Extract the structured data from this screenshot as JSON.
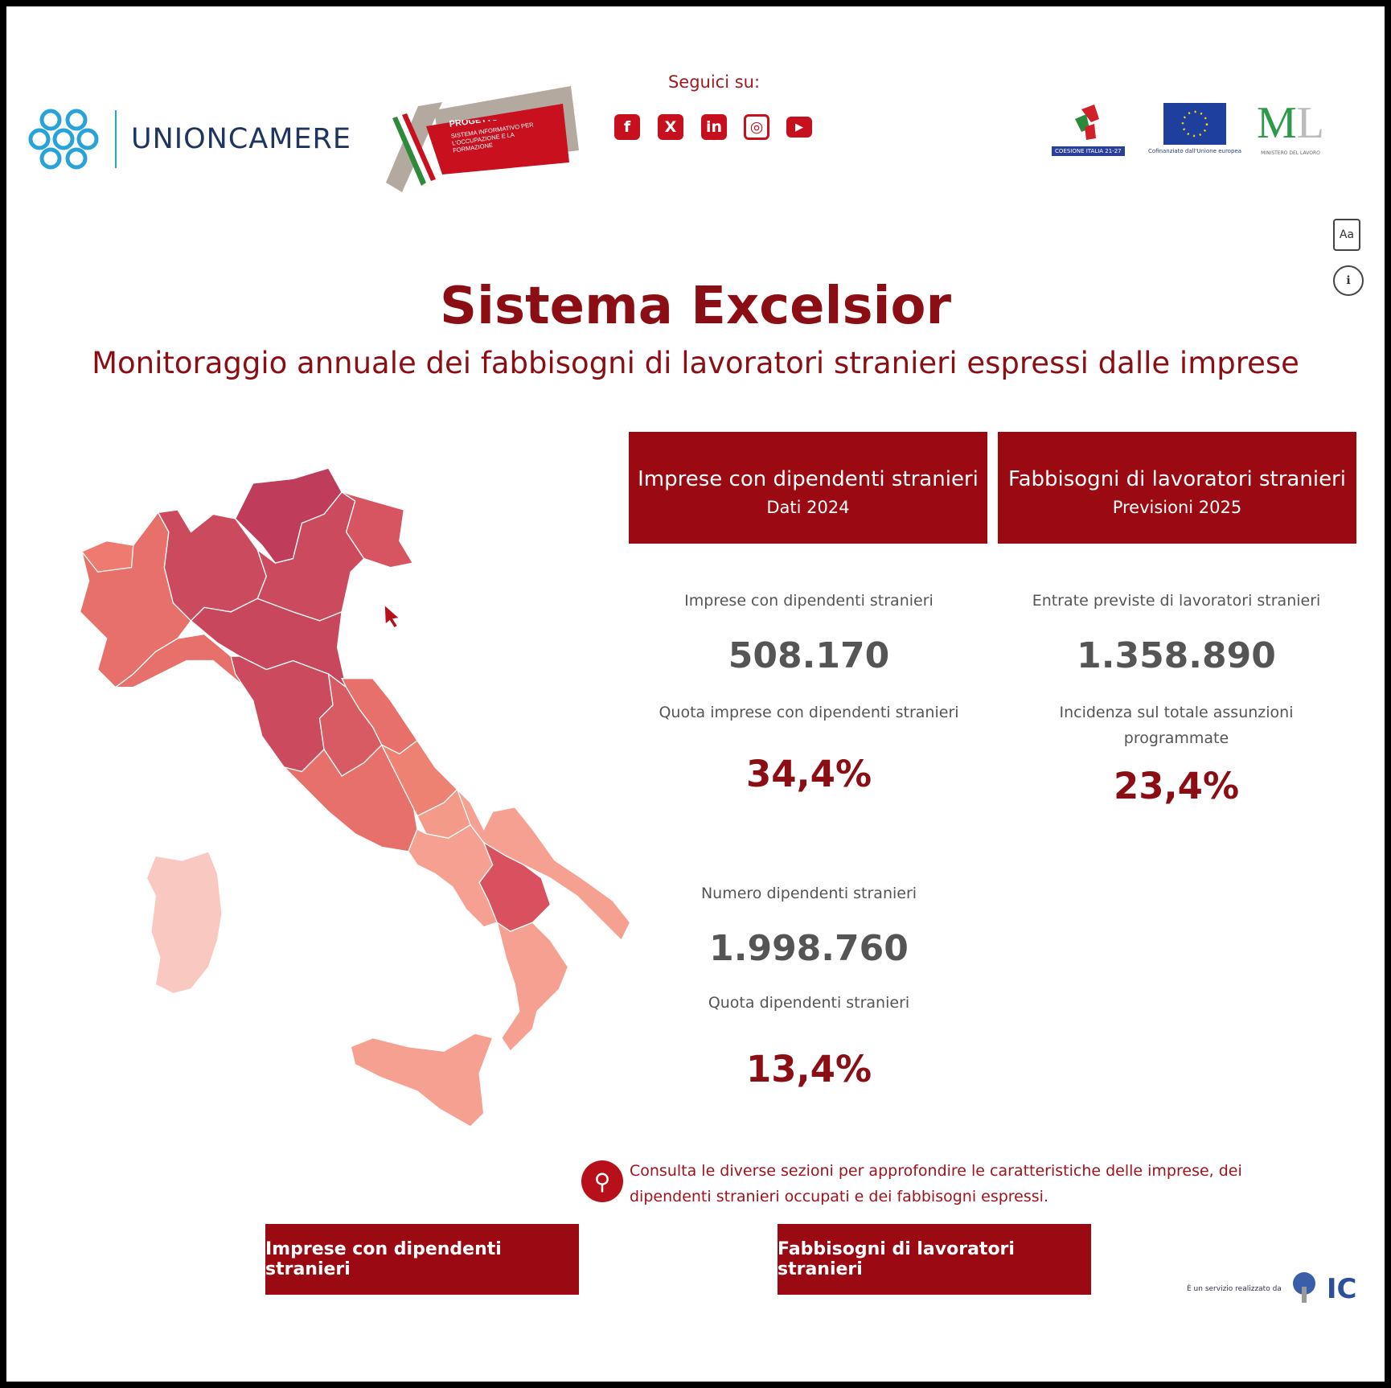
{
  "header": {
    "org_name": "UNIONCAMERE",
    "project_logo_text": [
      "PROGETTO EXCELSIOR",
      "SISTEMA INFORMATIVO PER L'OCCUPAZIONE E LA FORMAZIONE"
    ],
    "follow_label": "Seguici su:",
    "social": [
      {
        "icon": "facebook-icon",
        "glyph": "f"
      },
      {
        "icon": "x-icon",
        "glyph": "X"
      },
      {
        "icon": "linkedin-icon",
        "glyph": "in"
      },
      {
        "icon": "instagram-icon",
        "glyph": "◎"
      },
      {
        "icon": "youtube-icon",
        "glyph": "▶"
      }
    ],
    "partner_logos": [
      {
        "name": "coesione-italia-logo",
        "caption": "COESIONE ITALIA 21-27"
      },
      {
        "name": "eu-flag-logo",
        "caption": "Cofinanziato dall'Unione europea"
      },
      {
        "name": "ministero-lavoro-logo",
        "caption": "ML"
      }
    ]
  },
  "side_icons": [
    {
      "name": "glossary-icon",
      "glyph": "Aa"
    },
    {
      "name": "info-icon",
      "glyph": "ℹ"
    }
  ],
  "title": "Sistema Excelsior",
  "subtitle": "Monitoraggio annuale dei fabbisogni di lavoratori stranieri espressi dalle imprese",
  "panels": [
    {
      "heading": "Imprese con dipendenti stranieri",
      "sub": "Dati 2024"
    },
    {
      "heading": "Fabbisogni di lavoratori stranieri",
      "sub": "Previsioni 2025"
    }
  ],
  "stats": {
    "imprese_label": "Imprese con dipendenti stranieri",
    "imprese_value": "508.170",
    "quota_imprese_label": "Quota imprese con dipendenti stranieri",
    "quota_imprese_value": "34,4%",
    "numero_dip_label": "Numero dipendenti stranieri",
    "numero_dip_value": "1.998.760",
    "quota_dip_label": "Quota dipendenti stranieri",
    "quota_dip_value": "13,4%",
    "entrate_label": "Entrate previste di lavoratori stranieri",
    "entrate_value": "1.358.890",
    "incidenza_label_1": "Incidenza sul totale assunzioni",
    "incidenza_label_2": "programmate",
    "incidenza_value": "23,4%"
  },
  "note_line_1": "Consulta le diverse sezioni per approfondire le caratteristiche delle imprese, dei",
  "note_line_2": "dipendenti stranieri occupati e dei fabbisogni espressi.",
  "buttons": {
    "imprese": "Imprese con dipendenti stranieri",
    "fabbisogni": "Fabbisogni di lavoratori stranieri"
  },
  "footer": {
    "text": "È un servizio realizzato da",
    "logo": "IC"
  },
  "colors": {
    "accent": "#9b0a12",
    "title": "#8b0e14",
    "map_darkest": "#bf3d5a",
    "map_lightest": "#f9c8c0"
  }
}
